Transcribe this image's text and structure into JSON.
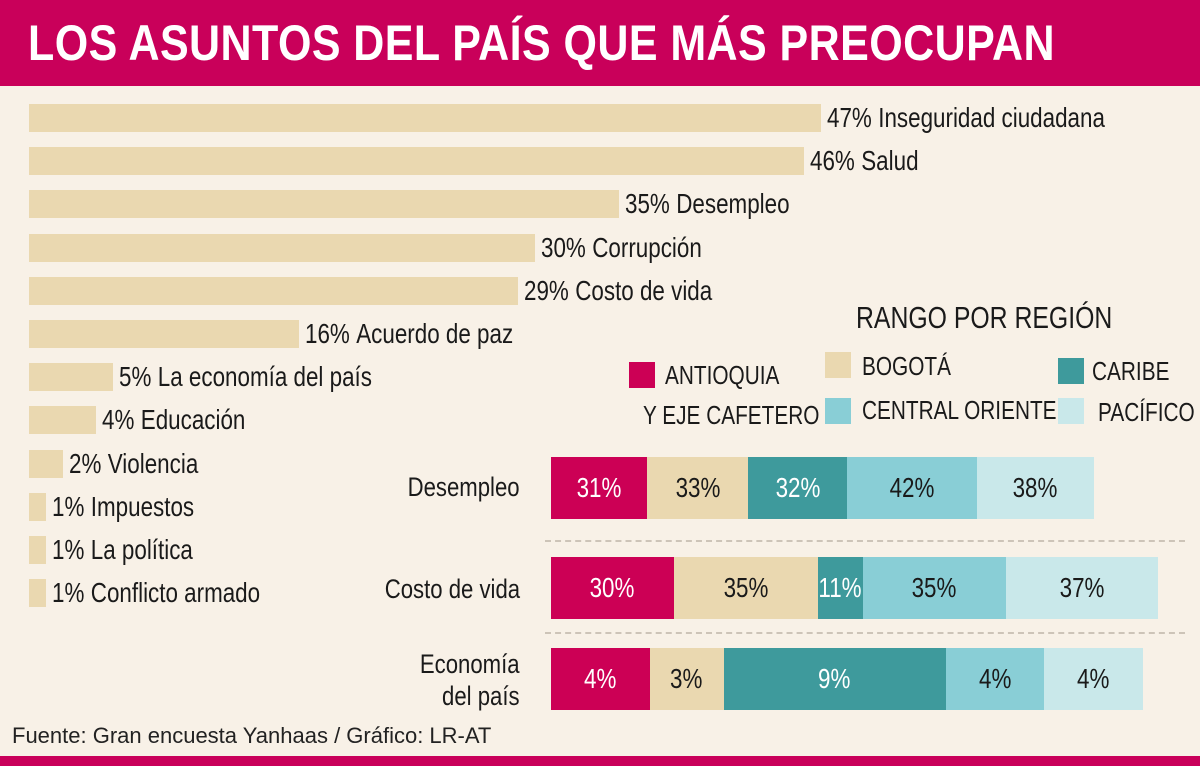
{
  "chart_data": [
    {
      "type": "bar",
      "orientation": "horizontal",
      "title": "LOS ASUNTOS DEL PAÍS QUE MÁS PREOCUPAN",
      "categories": [
        "Inseguridad ciudadana",
        "Salud",
        "Desempleo",
        "Corrupción",
        "Costo de vida",
        "Acuerdo de paz",
        "La economía del país",
        "Educación",
        "Violencia",
        "Impuestos",
        "La política",
        "Conflicto armado"
      ],
      "values": [
        47,
        46,
        35,
        30,
        29,
        16,
        5,
        4,
        2,
        1,
        1,
        1
      ],
      "labels": [
        "47%",
        "46%",
        "35%",
        "30%",
        "29%",
        "16%",
        "5%",
        "4%",
        "2%",
        "1%",
        "1%",
        "1%"
      ],
      "color": "#EAD8B0"
    },
    {
      "type": "bar",
      "stacked": true,
      "orientation": "horizontal",
      "title": "RANGO POR REGIÓN",
      "categories": [
        "Desempleo",
        "Costo de vida",
        "Economía del país"
      ],
      "category_lines": [
        [
          "Desempleo"
        ],
        [
          "Costo de vida"
        ],
        [
          "Economía",
          "del país"
        ]
      ],
      "legend": [
        {
          "lines": [
            "ANTIOQUIA",
            "Y EJE CAFETERO"
          ],
          "color": "#CC0055"
        },
        {
          "lines": [
            "BOGOTÁ"
          ],
          "color": "#EAD8B0"
        },
        {
          "lines": [
            "CARIBE"
          ],
          "color": "#3E9A9C"
        },
        {
          "lines": [
            "CENTRAL ORIENTE"
          ],
          "color": "#89CED6"
        },
        {
          "lines": [
            "PACÍFICO"
          ],
          "color": "#C9E8EA"
        }
      ],
      "series": [
        {
          "name": "ANTIOQUIA Y EJE CAFETERO",
          "values": [
            31,
            30,
            4
          ],
          "labels": [
            "31%",
            "30%",
            "4%"
          ],
          "color": "#CC0055",
          "text_color": "#ffffff"
        },
        {
          "name": "BOGOTÁ",
          "values": [
            33,
            35,
            3
          ],
          "labels": [
            "33%",
            "35%",
            "3%"
          ],
          "color": "#EAD8B0",
          "text_color": "#1a1a1a"
        },
        {
          "name": "CARIBE",
          "values": [
            32,
            11,
            9
          ],
          "labels": [
            "32%",
            "11%",
            "9%"
          ],
          "color": "#3E9A9C",
          "text_color": "#ffffff"
        },
        {
          "name": "CENTRAL ORIENTE",
          "values": [
            42,
            35,
            4
          ],
          "labels": [
            "42%",
            "35%",
            "4%"
          ],
          "color": "#89CED6",
          "text_color": "#1a1a1a"
        },
        {
          "name": "PACÍFICO",
          "values": [
            38,
            37,
            4
          ],
          "labels": [
            "38%",
            "37%",
            "4%"
          ],
          "color": "#C9E8EA",
          "text_color": "#1a1a1a"
        }
      ]
    }
  ],
  "footer": {
    "source": "Fuente: Gran encuesta Yanhaas / Gráfico: LR-AT"
  },
  "colors": {
    "header": "#C9005A",
    "background": "#F8F1E7"
  }
}
